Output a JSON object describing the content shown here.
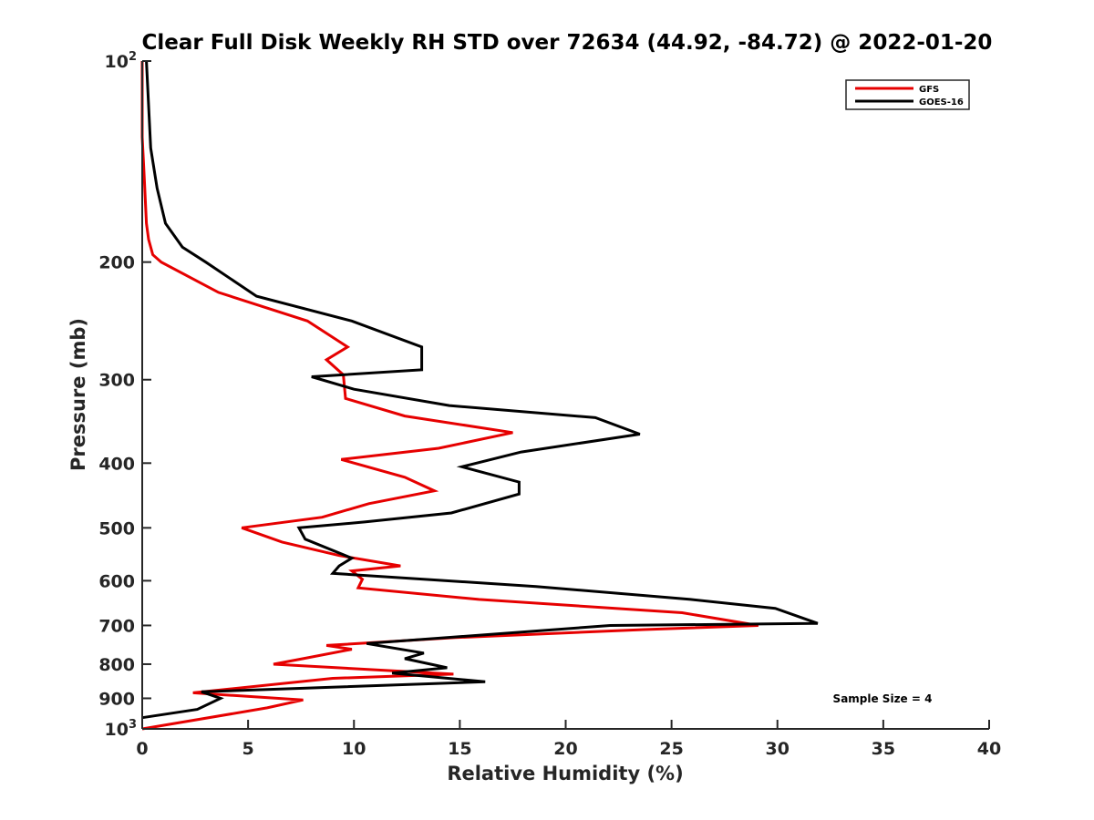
{
  "chart_data": {
    "type": "line",
    "title": "Clear Full Disk Weekly RH STD over 72634 (44.92, -84.72) @ 2022-01-20",
    "xlabel": "Relative Humidity (%)",
    "ylabel": "Pressure (mb)",
    "xlim": [
      0,
      40
    ],
    "ylim": [
      100,
      1000
    ],
    "yscale": "log",
    "yreversed": true,
    "grid": false,
    "x_ticks": [
      "0",
      "5",
      "10",
      "15",
      "20",
      "25",
      "30",
      "35",
      "40"
    ],
    "x_tick_values": [
      0,
      5,
      10,
      15,
      20,
      25,
      30,
      35,
      40
    ],
    "y_ticks": [
      {
        "value": 100,
        "base": "10",
        "exp": "2"
      },
      {
        "value": 200,
        "label": "200"
      },
      {
        "value": 300,
        "label": "300"
      },
      {
        "value": 400,
        "label": "400"
      },
      {
        "value": 500,
        "label": "500"
      },
      {
        "value": 600,
        "label": "600"
      },
      {
        "value": 700,
        "label": "700"
      },
      {
        "value": 800,
        "label": "800"
      },
      {
        "value": 900,
        "label": "900"
      },
      {
        "value": 1000,
        "base": "10",
        "exp": "3"
      }
    ],
    "legend": {
      "position": "top-right",
      "entries": [
        {
          "name": "GFS",
          "color": "#e60000"
        },
        {
          "name": "GOES-16",
          "color": "#000000"
        }
      ]
    },
    "annotation": "Sample Size = 4",
    "series": [
      {
        "name": "GFS",
        "color": "#e60000",
        "rh": [
          0.0,
          0.0,
          0.1,
          0.2,
          0.3,
          0.5,
          0.9,
          3.6,
          7.8,
          9.7,
          8.7,
          9.5,
          9.6,
          12.4,
          17.5,
          14.0,
          9.4,
          12.4,
          13.8,
          10.7,
          8.5,
          4.7,
          6.6,
          9.3,
          12.2,
          9.9,
          10.4,
          10.2,
          15.9,
          25.5,
          29.1,
          23.7,
          14.8,
          8.7,
          9.9,
          7.6,
          6.2,
          14.7,
          9.0,
          2.4,
          7.6,
          5.9,
          0.0
        ],
        "pressure": [
          100,
          130,
          150,
          175,
          185,
          195,
          200,
          222,
          245,
          268,
          280,
          295,
          320,
          340,
          360,
          380,
          395,
          420,
          440,
          460,
          482,
          500,
          525,
          550,
          570,
          580,
          597,
          615,
          640,
          670,
          700,
          710,
          730,
          750,
          760,
          785,
          800,
          828,
          840,
          883,
          905,
          930,
          1000
        ]
      },
      {
        "name": "GOES-16",
        "color": "#000000",
        "rh": [
          0.2,
          0.4,
          0.7,
          1.1,
          1.9,
          3.0,
          5.4,
          9.9,
          13.2,
          13.2,
          8.0,
          10.0,
          14.5,
          21.4,
          23.5,
          17.9,
          15.1,
          17.8,
          17.8,
          14.6,
          10.5,
          7.4,
          7.7,
          9.9,
          9.3,
          9.0,
          18.6,
          25.9,
          29.9,
          31.9,
          22.1,
          10.6,
          13.3,
          12.4,
          14.4,
          11.8,
          16.2,
          2.8,
          3.7,
          2.6,
          0.0
        ],
        "pressure": [
          100,
          135,
          155,
          175,
          190,
          200,
          225,
          245,
          268,
          290,
          297,
          310,
          328,
          342,
          362,
          385,
          405,
          427,
          445,
          475,
          490,
          500,
          520,
          555,
          570,
          585,
          612,
          640,
          660,
          695,
          700,
          745,
          770,
          785,
          810,
          825,
          850,
          880,
          900,
          935,
          962
        ]
      }
    ]
  }
}
